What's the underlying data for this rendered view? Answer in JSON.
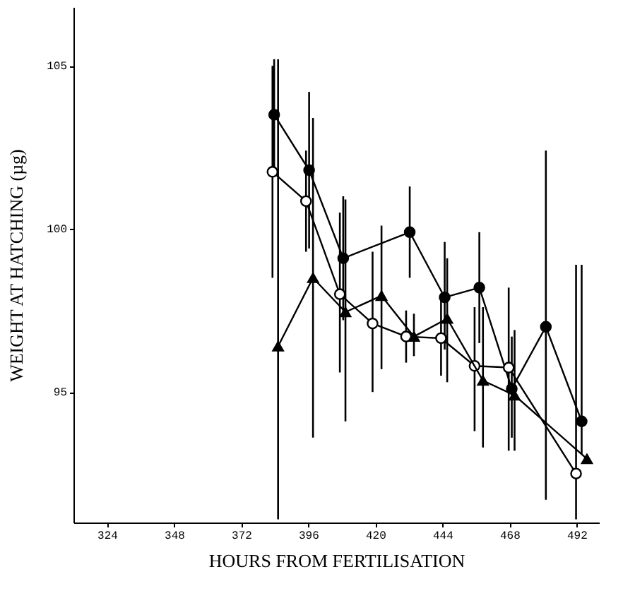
{
  "chart_data": {
    "type": "line",
    "xlabel": "HOURS FROM FERTILISATION",
    "ylabel": "WEIGHT AT HATCHING (µg)",
    "xlim": [
      312,
      500
    ],
    "xticks": [
      324,
      348,
      372,
      396,
      420,
      444,
      468,
      492
    ],
    "ylim": [
      91,
      106.8
    ],
    "yticks": [
      95,
      100,
      105
    ],
    "grid": false,
    "line_style": "solid",
    "series": [
      {
        "color": "#000000",
        "marker": "circle",
        "x": [
          383.8,
          396.3,
          408.5,
          432.3,
          444.8,
          457.2,
          468.8,
          481,
          493.8
        ],
        "values": [
          103.5,
          101.8,
          99.1,
          99.9,
          97.9,
          98.2,
          95.1,
          97.0,
          94.1
        ],
        "errors": [
          [
            101.8,
            105.2
          ],
          [
            99.4,
            104.2
          ],
          [
            97.2,
            101.0
          ],
          [
            98.5,
            101.3
          ],
          [
            96.3,
            99.6
          ],
          [
            96.5,
            99.9
          ],
          [
            93.6,
            96.7
          ],
          [
            91.7,
            102.4
          ],
          [
            93.1,
            98.9
          ]
        ]
      },
      {
        "color": "#000000",
        "marker": "circle",
        "colors": [
          "#ffffff",
          "#ffffff",
          "#ffffff",
          "#ffffff",
          "#ffffff",
          "#ffffff",
          "#ffffff",
          "#ffffff",
          "#ffffff"
        ],
        "x": [
          383.2,
          395.2,
          407.3,
          419,
          431,
          443.5,
          455.5,
          467.7,
          491.8
        ],
        "values": [
          101.75,
          100.85,
          98.0,
          97.1,
          96.7,
          96.65,
          95.8,
          95.75,
          92.5
        ],
        "errors": [
          [
            98.5,
            105.0
          ],
          [
            99.3,
            102.4
          ],
          [
            95.6,
            100.5
          ],
          [
            95.0,
            99.3
          ],
          [
            95.9,
            97.5
          ],
          [
            95.5,
            97.8
          ],
          [
            93.8,
            97.6
          ],
          [
            93.2,
            98.2
          ],
          [
            91.1,
            98.9
          ]
        ]
      },
      {
        "color": "#000000",
        "marker": "triangle",
        "x": [
          385.2,
          397.7,
          409.3,
          422.2,
          433.8,
          445.7,
          458.5,
          469.8,
          495.7
        ],
        "values": [
          96.4,
          98.5,
          97.45,
          97.95,
          96.7,
          97.25,
          95.35,
          94.9,
          92.95
        ],
        "errors": [
          [
            91.1,
            105.2
          ],
          [
            93.6,
            103.4
          ],
          [
            94.1,
            100.9
          ],
          [
            95.7,
            100.1
          ],
          [
            96.1,
            97.4
          ],
          [
            95.3,
            99.1
          ],
          [
            93.3,
            97.6
          ],
          [
            93.2,
            96.9
          ],
          null
        ]
      }
    ]
  }
}
